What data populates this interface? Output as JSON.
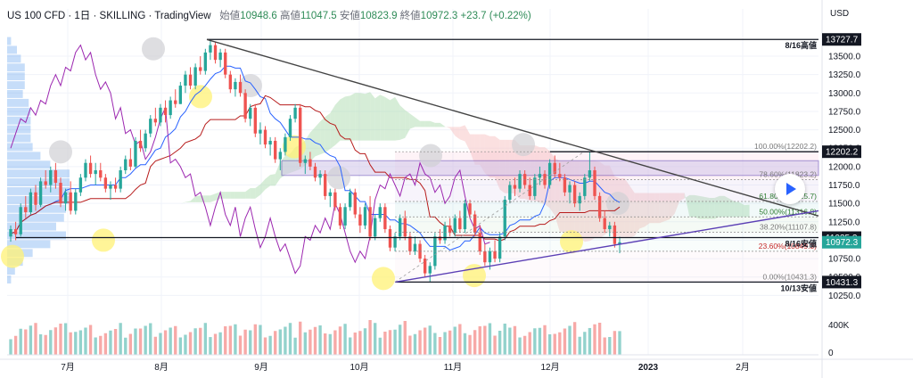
{
  "header": {
    "symbol": "US 100 CFD · 1日 · SKILLING · TradingView",
    "open_label": "始値",
    "open_value": "10948.6",
    "high_label": "高値",
    "high_value": "11047.5",
    "low_label": "安値",
    "low_value": "10823.9",
    "close_label": "終値",
    "close_value": "10972.3",
    "change": "+23.7 (+0.22%)"
  },
  "colors": {
    "up": "#26a69a",
    "down": "#ef5350",
    "grid": "#f0f3fa",
    "tenkan": "#2962ff",
    "kijun": "#b71c1c",
    "chikou": "#9c27b0",
    "cloud_bull": "#a5d6a7",
    "cloud_bear": "#f7c1c1",
    "trendline_upper": "#444444",
    "trendline_lower": "#5b3fb5",
    "level_line": "#131722",
    "tag_dark": "#131722",
    "tag_price": "#26a69a",
    "fib_band": "#d1c4e9",
    "sun": "#fff176",
    "moon": "#d0d0d4"
  },
  "chart_data": {
    "type": "candlestick",
    "y_unit": "USD",
    "y_range": [
      10000,
      13900
    ],
    "y_ticks": [
      10250,
      10500,
      10750,
      11000,
      11250,
      11500,
      11750,
      12000,
      12250,
      12500,
      12750,
      13000,
      13250,
      13500
    ],
    "y_tick_labels": [
      "10250.0",
      "10500.0",
      "10750.0",
      "11000.0",
      "11250.0",
      "11500.0",
      "11750.0",
      "12000.0",
      "12250.0",
      "12500.0",
      "12750.0",
      "13000.0",
      "13250.0",
      "13500.0"
    ],
    "x_axis": [
      "7月",
      "8月",
      "9月",
      "10月",
      "11月",
      "12月",
      "2023",
      "2月"
    ],
    "grid": true,
    "indicators": [
      "Ichimoku Cloud",
      "Fibonacci Retracement",
      "Volume Profile",
      "Volume"
    ],
    "horizontal_levels": [
      {
        "price": 13727.7,
        "label": "8/16高値",
        "tag": "13727.7"
      },
      {
        "price": 12202.2,
        "label": "",
        "tag": "12202.2"
      },
      {
        "price": 11035.2,
        "label": "8/16安値",
        "tag": "11035.2"
      },
      {
        "price": 10431.3,
        "label": "10/13安値",
        "tag": "10431.3"
      }
    ],
    "current_price": {
      "value": 10972.3,
      "tag": "10972.3"
    },
    "fibonacci": [
      {
        "ratio": "100.00%",
        "price": 12202.2,
        "label": "100.00%(12202.2)"
      },
      {
        "ratio": "78.60%",
        "price": 11823.2,
        "label": "78.60%(11823.2)"
      },
      {
        "ratio": "61.80%",
        "price": 11525.7,
        "label": "61.80%(11525.7)"
      },
      {
        "ratio": "50.00%",
        "price": 11316.8,
        "label": "50.00%(11316.8)"
      },
      {
        "ratio": "38.20%",
        "price": 11107.8,
        "label": "38.20%(11107.8)"
      },
      {
        "ratio": "23.60%",
        "price": 10849.3,
        "label": "23.60%(10849.3)"
      },
      {
        "ratio": "0.00%",
        "price": 10431.3,
        "label": "0.00%(10431.3)"
      }
    ],
    "volume_axis": {
      "ticks": [
        0,
        400
      ],
      "labels": [
        "0",
        "400K"
      ]
    },
    "candles": [
      {
        "o": 11050,
        "h": 11200,
        "l": 10980,
        "c": 11150
      },
      {
        "o": 11150,
        "h": 11250,
        "l": 11000,
        "c": 11080
      },
      {
        "o": 11080,
        "h": 11500,
        "l": 11050,
        "c": 11450
      },
      {
        "o": 11450,
        "h": 11600,
        "l": 11300,
        "c": 11380
      },
      {
        "o": 11380,
        "h": 11700,
        "l": 11350,
        "c": 11650
      },
      {
        "o": 11650,
        "h": 11750,
        "l": 11400,
        "c": 11480
      },
      {
        "o": 11480,
        "h": 11850,
        "l": 11450,
        "c": 11800
      },
      {
        "o": 11800,
        "h": 11950,
        "l": 11700,
        "c": 11750
      },
      {
        "o": 11750,
        "h": 12000,
        "l": 11650,
        "c": 11950
      },
      {
        "o": 11950,
        "h": 12050,
        "l": 11700,
        "c": 11780
      },
      {
        "o": 11780,
        "h": 11850,
        "l": 11450,
        "c": 11500
      },
      {
        "o": 11500,
        "h": 11700,
        "l": 11400,
        "c": 11650
      },
      {
        "o": 11650,
        "h": 11800,
        "l": 11350,
        "c": 11400
      },
      {
        "o": 11400,
        "h": 11700,
        "l": 11350,
        "c": 11650
      },
      {
        "o": 11650,
        "h": 11900,
        "l": 11600,
        "c": 11850
      },
      {
        "o": 11850,
        "h": 12100,
        "l": 11800,
        "c": 12050
      },
      {
        "o": 12050,
        "h": 12150,
        "l": 11850,
        "c": 11900
      },
      {
        "o": 11900,
        "h": 12050,
        "l": 11750,
        "c": 11950
      },
      {
        "o": 11950,
        "h": 12050,
        "l": 11800,
        "c": 11850
      },
      {
        "o": 11850,
        "h": 11900,
        "l": 11650,
        "c": 11700
      },
      {
        "o": 11700,
        "h": 11800,
        "l": 11550,
        "c": 11750
      },
      {
        "o": 11750,
        "h": 11850,
        "l": 11650,
        "c": 11700
      },
      {
        "o": 11700,
        "h": 12000,
        "l": 11650,
        "c": 11950
      },
      {
        "o": 11950,
        "h": 12150,
        "l": 11900,
        "c": 12100
      },
      {
        "o": 12100,
        "h": 12250,
        "l": 11950,
        "c": 12000
      },
      {
        "o": 12000,
        "h": 12400,
        "l": 11980,
        "c": 12350
      },
      {
        "o": 12350,
        "h": 12500,
        "l": 12200,
        "c": 12250
      },
      {
        "o": 12250,
        "h": 12500,
        "l": 12200,
        "c": 12450
      },
      {
        "o": 12450,
        "h": 12700,
        "l": 12400,
        "c": 12650
      },
      {
        "o": 12650,
        "h": 12800,
        "l": 12550,
        "c": 12600
      },
      {
        "o": 12600,
        "h": 12850,
        "l": 12550,
        "c": 12800
      },
      {
        "o": 12800,
        "h": 12900,
        "l": 12600,
        "c": 12700
      },
      {
        "o": 12700,
        "h": 12950,
        "l": 12650,
        "c": 12900
      },
      {
        "o": 12900,
        "h": 13050,
        "l": 12800,
        "c": 12850
      },
      {
        "o": 12850,
        "h": 13150,
        "l": 12850,
        "c": 13100
      },
      {
        "o": 13100,
        "h": 13300,
        "l": 13000,
        "c": 13250
      },
      {
        "o": 13250,
        "h": 13350,
        "l": 13050,
        "c": 13100
      },
      {
        "o": 13100,
        "h": 13400,
        "l": 13050,
        "c": 13350
      },
      {
        "o": 13350,
        "h": 13500,
        "l": 13250,
        "c": 13300
      },
      {
        "o": 13300,
        "h": 13600,
        "l": 13250,
        "c": 13550
      },
      {
        "o": 13550,
        "h": 13727,
        "l": 13450,
        "c": 13650
      },
      {
        "o": 13650,
        "h": 13700,
        "l": 13400,
        "c": 13450
      },
      {
        "o": 13450,
        "h": 13600,
        "l": 13350,
        "c": 13550
      },
      {
        "o": 13550,
        "h": 13600,
        "l": 13200,
        "c": 13250
      },
      {
        "o": 13250,
        "h": 13300,
        "l": 13000,
        "c": 13050
      },
      {
        "o": 13050,
        "h": 13200,
        "l": 12950,
        "c": 13150
      },
      {
        "o": 13150,
        "h": 13250,
        "l": 12950,
        "c": 13000
      },
      {
        "o": 13000,
        "h": 13050,
        "l": 12600,
        "c": 12650
      },
      {
        "o": 12650,
        "h": 12850,
        "l": 12550,
        "c": 12800
      },
      {
        "o": 12800,
        "h": 12850,
        "l": 12400,
        "c": 12450
      },
      {
        "o": 12450,
        "h": 12600,
        "l": 12300,
        "c": 12500
      },
      {
        "o": 12500,
        "h": 12550,
        "l": 12250,
        "c": 12300
      },
      {
        "o": 12300,
        "h": 12400,
        "l": 12150,
        "c": 12350
      },
      {
        "o": 12350,
        "h": 12400,
        "l": 12050,
        "c": 12100
      },
      {
        "o": 12100,
        "h": 12250,
        "l": 11950,
        "c": 12200
      },
      {
        "o": 12200,
        "h": 12450,
        "l": 12150,
        "c": 12400
      },
      {
        "o": 12400,
        "h": 12700,
        "l": 12350,
        "c": 12650
      },
      {
        "o": 12650,
        "h": 12850,
        "l": 12600,
        "c": 12800
      },
      {
        "o": 12800,
        "h": 12850,
        "l": 12000,
        "c": 12050
      },
      {
        "o": 12050,
        "h": 12150,
        "l": 11900,
        "c": 12100
      },
      {
        "o": 12100,
        "h": 12200,
        "l": 11950,
        "c": 12000
      },
      {
        "o": 12000,
        "h": 12050,
        "l": 11800,
        "c": 11850
      },
      {
        "o": 11850,
        "h": 11950,
        "l": 11750,
        "c": 11900
      },
      {
        "o": 11900,
        "h": 11950,
        "l": 11550,
        "c": 11600
      },
      {
        "o": 11600,
        "h": 11700,
        "l": 11450,
        "c": 11650
      },
      {
        "o": 11650,
        "h": 11700,
        "l": 11400,
        "c": 11450
      },
      {
        "o": 11450,
        "h": 11500,
        "l": 11150,
        "c": 11200
      },
      {
        "o": 11200,
        "h": 11500,
        "l": 11150,
        "c": 11450
      },
      {
        "o": 11450,
        "h": 11700,
        "l": 11400,
        "c": 11650
      },
      {
        "o": 11650,
        "h": 11700,
        "l": 11300,
        "c": 11350
      },
      {
        "o": 11350,
        "h": 11450,
        "l": 11100,
        "c": 11200
      },
      {
        "o": 11200,
        "h": 11500,
        "l": 11150,
        "c": 11450
      },
      {
        "o": 11450,
        "h": 11600,
        "l": 11000,
        "c": 11050
      },
      {
        "o": 11050,
        "h": 11350,
        "l": 11000,
        "c": 11300
      },
      {
        "o": 11300,
        "h": 11500,
        "l": 11250,
        "c": 11450
      },
      {
        "o": 11450,
        "h": 11500,
        "l": 11100,
        "c": 11150
      },
      {
        "o": 11150,
        "h": 11200,
        "l": 10850,
        "c": 10900
      },
      {
        "o": 10900,
        "h": 11100,
        "l": 10850,
        "c": 11050
      },
      {
        "o": 11050,
        "h": 11350,
        "l": 11000,
        "c": 11300
      },
      {
        "o": 11300,
        "h": 11400,
        "l": 11000,
        "c": 11050
      },
      {
        "o": 11050,
        "h": 11100,
        "l": 10800,
        "c": 10850
      },
      {
        "o": 10850,
        "h": 11050,
        "l": 10800,
        "c": 10950
      },
      {
        "o": 10950,
        "h": 11000,
        "l": 10700,
        "c": 10750
      },
      {
        "o": 10750,
        "h": 10800,
        "l": 10500,
        "c": 10550
      },
      {
        "o": 10550,
        "h": 10700,
        "l": 10431,
        "c": 10650
      },
      {
        "o": 10650,
        "h": 11100,
        "l": 10600,
        "c": 11050
      },
      {
        "o": 11050,
        "h": 11150,
        "l": 10950,
        "c": 11000
      },
      {
        "o": 11000,
        "h": 11250,
        "l": 10950,
        "c": 11200
      },
      {
        "o": 11200,
        "h": 11300,
        "l": 11050,
        "c": 11100
      },
      {
        "o": 11100,
        "h": 11350,
        "l": 11050,
        "c": 11300
      },
      {
        "o": 11300,
        "h": 11400,
        "l": 11100,
        "c": 11150
      },
      {
        "o": 11150,
        "h": 11550,
        "l": 11100,
        "c": 11500
      },
      {
        "o": 11500,
        "h": 11550,
        "l": 11300,
        "c": 11350
      },
      {
        "o": 11350,
        "h": 11400,
        "l": 11050,
        "c": 11100
      },
      {
        "o": 11100,
        "h": 11200,
        "l": 10800,
        "c": 10850
      },
      {
        "o": 10850,
        "h": 10950,
        "l": 10650,
        "c": 10700
      },
      {
        "o": 10700,
        "h": 10900,
        "l": 10600,
        "c": 10850
      },
      {
        "o": 10850,
        "h": 11000,
        "l": 10700,
        "c": 10750
      },
      {
        "o": 10750,
        "h": 11100,
        "l": 10700,
        "c": 11050
      },
      {
        "o": 11050,
        "h": 11600,
        "l": 11000,
        "c": 11550
      },
      {
        "o": 11550,
        "h": 11800,
        "l": 11500,
        "c": 11750
      },
      {
        "o": 11750,
        "h": 11850,
        "l": 11600,
        "c": 11700
      },
      {
        "o": 11700,
        "h": 11950,
        "l": 11650,
        "c": 11900
      },
      {
        "o": 11900,
        "h": 11950,
        "l": 11700,
        "c": 11750
      },
      {
        "o": 11750,
        "h": 11850,
        "l": 11550,
        "c": 11600
      },
      {
        "o": 11600,
        "h": 11900,
        "l": 11550,
        "c": 11850
      },
      {
        "o": 11850,
        "h": 12000,
        "l": 11750,
        "c": 11900
      },
      {
        "o": 11900,
        "h": 11950,
        "l": 11700,
        "c": 11750
      },
      {
        "o": 11750,
        "h": 12100,
        "l": 11700,
        "c": 12050
      },
      {
        "o": 12050,
        "h": 12150,
        "l": 11850,
        "c": 11900
      },
      {
        "o": 11900,
        "h": 12050,
        "l": 11800,
        "c": 11850
      },
      {
        "o": 11850,
        "h": 11900,
        "l": 11600,
        "c": 11650
      },
      {
        "o": 11650,
        "h": 11800,
        "l": 11500,
        "c": 11750
      },
      {
        "o": 11750,
        "h": 11800,
        "l": 11450,
        "c": 11500
      },
      {
        "o": 11500,
        "h": 11650,
        "l": 11400,
        "c": 11600
      },
      {
        "o": 11600,
        "h": 11900,
        "l": 11550,
        "c": 11850
      },
      {
        "o": 11850,
        "h": 12202,
        "l": 11800,
        "c": 11950
      },
      {
        "o": 11950,
        "h": 12000,
        "l": 11550,
        "c": 11600
      },
      {
        "o": 11600,
        "h": 11650,
        "l": 11250,
        "c": 11300
      },
      {
        "o": 11300,
        "h": 11400,
        "l": 11100,
        "c": 11150
      },
      {
        "o": 11150,
        "h": 11250,
        "l": 11050,
        "c": 11200
      },
      {
        "o": 11200,
        "h": 11250,
        "l": 10900,
        "c": 10948
      },
      {
        "o": 10948,
        "h": 11047,
        "l": 10823,
        "c": 10972
      }
    ]
  }
}
